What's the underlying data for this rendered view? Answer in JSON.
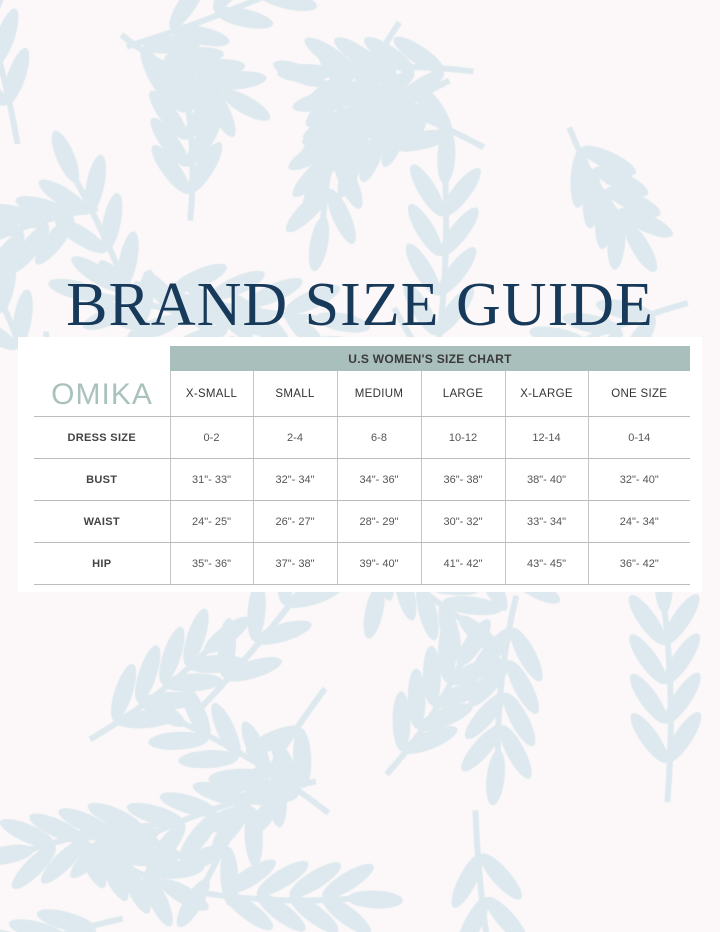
{
  "title": "BRAND SIZE GUIDE",
  "colors": {
    "title": "#17395a",
    "header_band": "#a9bfbc",
    "background": "#fcf8f9",
    "leaf": "#dde9ee"
  },
  "logo": "OMIKA",
  "chart_title": "U.S WOMEN'S SIZE CHART",
  "sizes": [
    "X-SMALL",
    "SMALL",
    "MEDIUM",
    "LARGE",
    "X-LARGE",
    "ONE SIZE"
  ],
  "rows": [
    {
      "label": "DRESS SIZE",
      "values": [
        "0-2",
        "2-4",
        "6-8",
        "10-12",
        "12-14",
        "0-14"
      ]
    },
    {
      "label": "BUST",
      "values": [
        "31\"- 33\"",
        "32\"- 34\"",
        "34\"- 36\"",
        "36\"- 38\"",
        "38\"- 40\"",
        "32\"- 40\""
      ]
    },
    {
      "label": "WAIST",
      "values": [
        "24\"- 25\"",
        "26\"- 27\"",
        "28\"- 29\"",
        "30\"- 32\"",
        "33\"- 34\"",
        "24\"- 34\""
      ]
    },
    {
      "label": "HIP",
      "values": [
        "35\"- 36\"",
        "37\"- 38\"",
        "39\"- 40\"",
        "41\"- 42\"",
        "43\"- 45\"",
        "36\"- 42\""
      ]
    }
  ]
}
